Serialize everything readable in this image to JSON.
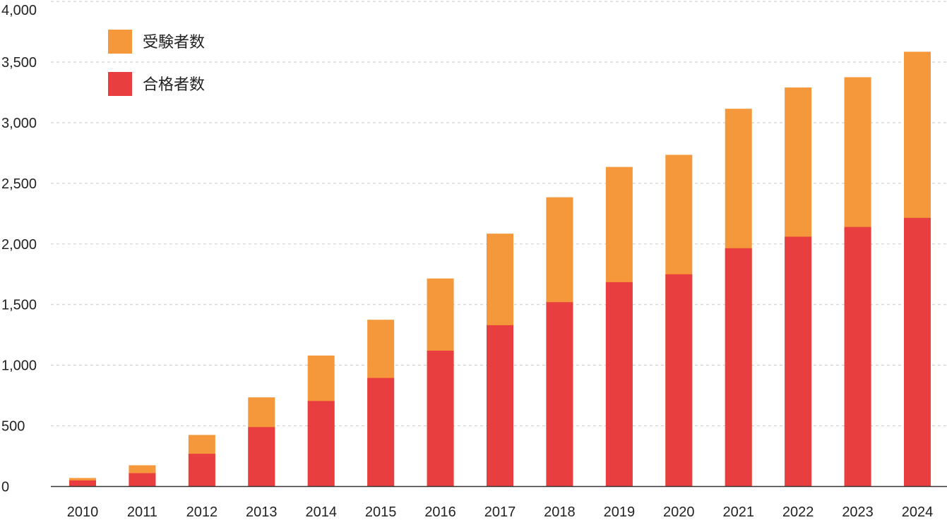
{
  "chart_data": {
    "type": "bar",
    "stacked": false,
    "title": "",
    "xlabel": "",
    "ylabel": "",
    "ylim": [
      0,
      4000
    ],
    "yticks": [
      0,
      500,
      1000,
      1500,
      2000,
      2500,
      3000,
      3500,
      4000
    ],
    "ytick_labels": [
      "0",
      "500",
      "1,000",
      "1,500",
      "2,000",
      "2,500",
      "3,000",
      "3,500",
      "4,000"
    ],
    "grid": "horizontal-dashed",
    "legend_position": "top-left",
    "categories": [
      "2010",
      "2011",
      "2012",
      "2013",
      "2014",
      "2015",
      "2016",
      "2017",
      "2018",
      "2019",
      "2020",
      "2021",
      "2022",
      "2023",
      "2024"
    ],
    "series": [
      {
        "name": "受験者数",
        "color": "#F5983C",
        "values": [
          70,
          175,
          425,
          735,
          1080,
          1375,
          1715,
          2085,
          2385,
          2635,
          2735,
          3115,
          3290,
          3375,
          3585
        ]
      },
      {
        "name": "合格者数",
        "color": "#E83E3F",
        "values": [
          50,
          110,
          270,
          490,
          705,
          895,
          1120,
          1330,
          1520,
          1685,
          1750,
          1965,
          2060,
          2140,
          2215
        ]
      }
    ]
  }
}
